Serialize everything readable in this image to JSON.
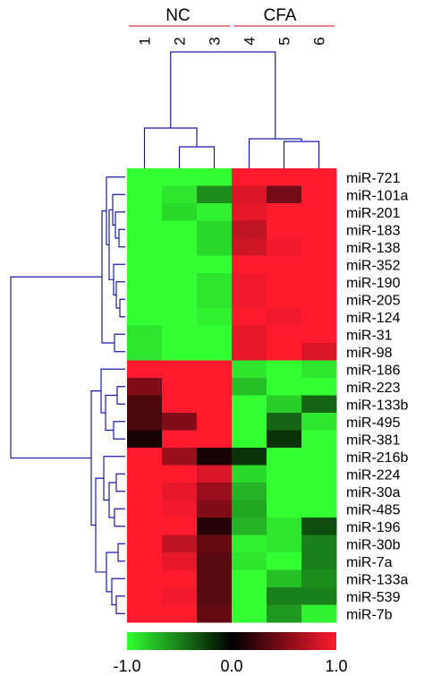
{
  "chart_data": {
    "type": "heatmap",
    "title": "",
    "groups": [
      {
        "label": "NC",
        "columns": [
          0,
          1,
          2
        ]
      },
      {
        "label": "CFA",
        "columns": [
          3,
          4,
          5
        ]
      }
    ],
    "columns": [
      "1",
      "2",
      "3",
      "4",
      "5",
      "6"
    ],
    "rows": [
      "miR-721",
      "miR-101a",
      "miR-201",
      "miR-183",
      "miR-138",
      "miR-352",
      "miR-190",
      "miR-205",
      "miR-124",
      "miR-31",
      "miR-98",
      "miR-186",
      "miR-223",
      "miR-133b",
      "miR-495",
      "miR-381",
      "miR-216b",
      "miR-224",
      "miR-30a",
      "miR-485",
      "miR-196",
      "miR-30b",
      "miR-7a",
      "miR-133a",
      "miR-539",
      "miR-7b"
    ],
    "values": [
      [
        -1.0,
        -1.0,
        -1.0,
        1.0,
        1.0,
        1.0
      ],
      [
        -1.0,
        -0.9,
        -0.55,
        0.85,
        0.45,
        1.0
      ],
      [
        -1.0,
        -0.85,
        -0.95,
        0.9,
        1.0,
        1.0
      ],
      [
        -1.0,
        -1.0,
        -0.85,
        0.75,
        1.0,
        1.0
      ],
      [
        -1.0,
        -1.0,
        -0.85,
        0.8,
        0.95,
        1.0
      ],
      [
        -1.0,
        -1.0,
        -1.0,
        1.0,
        1.0,
        1.0
      ],
      [
        -1.0,
        -1.0,
        -0.9,
        0.95,
        1.0,
        1.0
      ],
      [
        -1.0,
        -1.0,
        -0.9,
        0.95,
        1.0,
        1.0
      ],
      [
        -1.0,
        -1.0,
        -0.95,
        1.0,
        0.95,
        1.0
      ],
      [
        -0.9,
        -1.0,
        -1.0,
        0.9,
        1.0,
        1.0
      ],
      [
        -0.9,
        -1.0,
        -1.0,
        0.9,
        1.0,
        0.85
      ],
      [
        1.0,
        1.0,
        1.0,
        -0.9,
        -1.0,
        -0.9
      ],
      [
        0.5,
        1.0,
        1.0,
        -0.75,
        -1.0,
        -1.0
      ],
      [
        0.3,
        1.0,
        1.0,
        -1.0,
        -0.8,
        -0.4
      ],
      [
        0.3,
        0.5,
        1.0,
        -1.0,
        -0.4,
        -0.9
      ],
      [
        0.1,
        1.0,
        1.0,
        -1.0,
        -0.2,
        -1.0
      ],
      [
        1.0,
        0.6,
        0.1,
        -0.2,
        -1.0,
        -1.0
      ],
      [
        1.0,
        1.0,
        0.85,
        -0.85,
        -1.0,
        -1.0
      ],
      [
        1.0,
        0.9,
        0.6,
        -0.7,
        -1.0,
        -1.0
      ],
      [
        1.0,
        0.95,
        0.5,
        -0.65,
        -1.0,
        -1.0
      ],
      [
        1.0,
        1.0,
        0.15,
        -0.7,
        -0.9,
        -0.3
      ],
      [
        1.0,
        0.75,
        0.4,
        -0.95,
        -0.9,
        -0.5
      ],
      [
        1.0,
        0.9,
        0.35,
        -0.9,
        -1.0,
        -0.5
      ],
      [
        1.0,
        1.0,
        0.35,
        -1.0,
        -0.75,
        -0.55
      ],
      [
        1.0,
        0.95,
        0.35,
        -1.0,
        -0.5,
        -0.5
      ],
      [
        1.0,
        1.0,
        0.4,
        -1.0,
        -0.6,
        -0.95
      ]
    ],
    "colorscale": {
      "min": -1.0,
      "mid": 0.0,
      "max": 1.0,
      "min_color": "#33ff33",
      "mid_color": "#000000",
      "max_color": "#ff1a2e",
      "tick_labels": [
        "-1.0",
        "0.0",
        "1.0"
      ]
    },
    "xlabel": "",
    "ylabel": ""
  },
  "colors": {
    "dendrogram": "#1a1aa8",
    "group_line": "#e05a6e"
  }
}
